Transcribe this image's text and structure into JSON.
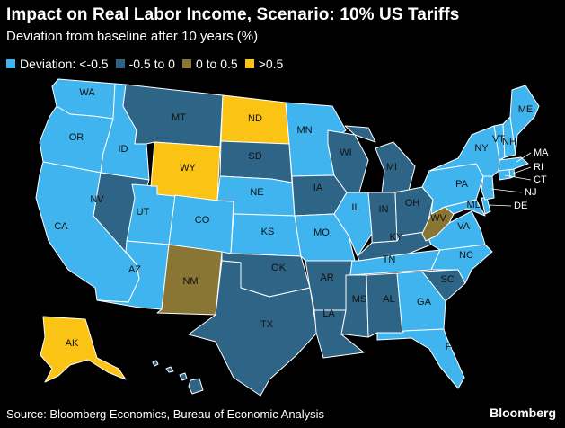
{
  "title": "Impact on Real Labor Income, Scenario: 10% US Tariffs",
  "subtitle": "Deviation from baseline after 10 years (%)",
  "legend": {
    "prefix": "Deviation:",
    "items": [
      {
        "label": "<-0.5",
        "color": "#3fb4ef"
      },
      {
        "label": "-0.5 to 0",
        "color": "#2e6586"
      },
      {
        "label": "0 to 0.5",
        "color": "#8a7634"
      },
      {
        "label": ">0.5",
        "color": "#fbc313"
      }
    ]
  },
  "states": [
    {
      "abbr": "WA",
      "bin": 0
    },
    {
      "abbr": "OR",
      "bin": 0
    },
    {
      "abbr": "CA",
      "bin": 0
    },
    {
      "abbr": "ID",
      "bin": 0
    },
    {
      "abbr": "NV",
      "bin": 1
    },
    {
      "abbr": "UT",
      "bin": 0
    },
    {
      "abbr": "AZ",
      "bin": 0
    },
    {
      "abbr": "MT",
      "bin": 1
    },
    {
      "abbr": "WY",
      "bin": 3
    },
    {
      "abbr": "CO",
      "bin": 0
    },
    {
      "abbr": "NM",
      "bin": 2
    },
    {
      "abbr": "ND",
      "bin": 3
    },
    {
      "abbr": "SD",
      "bin": 1
    },
    {
      "abbr": "NE",
      "bin": 0
    },
    {
      "abbr": "KS",
      "bin": 0
    },
    {
      "abbr": "OK",
      "bin": 1
    },
    {
      "abbr": "TX",
      "bin": 1
    },
    {
      "abbr": "MN",
      "bin": 0
    },
    {
      "abbr": "IA",
      "bin": 1
    },
    {
      "abbr": "MO",
      "bin": 0
    },
    {
      "abbr": "AR",
      "bin": 1
    },
    {
      "abbr": "LA",
      "bin": 1
    },
    {
      "abbr": "WI",
      "bin": 1
    },
    {
      "abbr": "IL",
      "bin": 0
    },
    {
      "abbr": "MI",
      "bin": 1
    },
    {
      "abbr": "IN",
      "bin": 1
    },
    {
      "abbr": "OH",
      "bin": 1
    },
    {
      "abbr": "KY",
      "bin": 1
    },
    {
      "abbr": "TN",
      "bin": 0
    },
    {
      "abbr": "MS",
      "bin": 1
    },
    {
      "abbr": "AL",
      "bin": 1
    },
    {
      "abbr": "GA",
      "bin": 0
    },
    {
      "abbr": "FL",
      "bin": 0
    },
    {
      "abbr": "SC",
      "bin": 1
    },
    {
      "abbr": "NC",
      "bin": 0
    },
    {
      "abbr": "VA",
      "bin": 0
    },
    {
      "abbr": "WV",
      "bin": 2
    },
    {
      "abbr": "MD",
      "bin": 0
    },
    {
      "abbr": "DE",
      "bin": 0
    },
    {
      "abbr": "PA",
      "bin": 0
    },
    {
      "abbr": "NJ",
      "bin": 0
    },
    {
      "abbr": "NY",
      "bin": 0
    },
    {
      "abbr": "CT",
      "bin": 0
    },
    {
      "abbr": "RI",
      "bin": 0
    },
    {
      "abbr": "MA",
      "bin": 0
    },
    {
      "abbr": "VT",
      "bin": 0
    },
    {
      "abbr": "NH",
      "bin": 0
    },
    {
      "abbr": "ME",
      "bin": 0
    },
    {
      "abbr": "AK",
      "bin": 3
    },
    {
      "abbr": "HI",
      "bin": 1
    }
  ],
  "source": "Source: Bloomberg Economics, Bureau of Economic Analysis",
  "brand": "Bloomberg"
}
